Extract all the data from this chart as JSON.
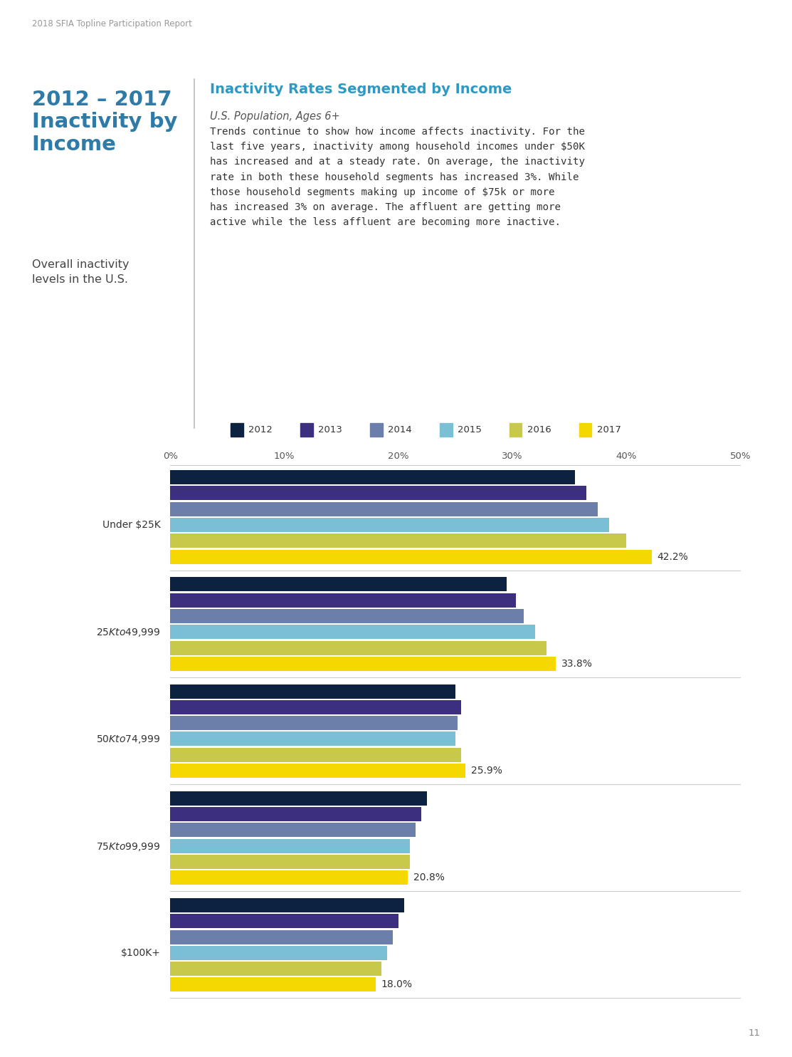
{
  "page_label": "2018 SFIA Topline Participation Report",
  "page_number": "11",
  "left_title_line1": "2012 – 2017",
  "left_title_line2": "Inactivity by",
  "left_title_line3": "Income",
  "left_subtitle": "Overall inactivity\nlevels in the U.S.",
  "right_chart_title": "Inactivity Rates Segmented by Income",
  "right_subtitle": "U.S. Population, Ages 6+",
  "body_text": "Trends continue to show how income affects inactivity. For the\nlast five years, inactivity among household incomes under $50K\nhas increased and at a steady rate. On average, the inactivity\nrate in both these household segments has increased 3%. While\nthose household segments making up income of $75k or more\nhas increased 3% on average. The affluent are getting more\nactive while the less affluent are becoming more inactive.",
  "categories": [
    "Under $25K",
    "$25K to $49,999",
    "$50K to $74,999",
    "$75K to $99,999",
    "$100K+"
  ],
  "years": [
    "2012",
    "2013",
    "2014",
    "2015",
    "2016",
    "2017"
  ],
  "colors": [
    "#0d2240",
    "#3d2f7f",
    "#6b7faa",
    "#7bbfd4",
    "#c8c84a",
    "#f5d800"
  ],
  "data": {
    "Under $25K": [
      35.5,
      36.5,
      37.5,
      38.5,
      40.0,
      42.2
    ],
    "$25K to $49,999": [
      29.5,
      30.3,
      31.0,
      32.0,
      33.0,
      33.8
    ],
    "$50K to $74,999": [
      25.0,
      25.5,
      25.2,
      25.0,
      25.5,
      25.9
    ],
    "$75K to $99,999": [
      22.5,
      22.0,
      21.5,
      21.0,
      21.0,
      20.8
    ],
    "$100K+": [
      20.5,
      20.0,
      19.5,
      19.0,
      18.5,
      18.0
    ]
  },
  "last_year_labels": {
    "Under $25K": "42.2%",
    "$25K to $49,999": "33.8%",
    "$50K to $74,999": "25.9%",
    "$75K to $99,999": "20.8%",
    "$100K+": "18.0%"
  },
  "xlim": [
    0,
    50
  ],
  "xticks": [
    0,
    10,
    20,
    30,
    40,
    50
  ],
  "xtick_labels": [
    "0%",
    "10%",
    "20%",
    "30%",
    "40%",
    "50%"
  ],
  "background_color": "#ffffff",
  "divider_color": "#cccccc",
  "left_title_color": "#2e7ba8",
  "right_title_color": "#2e9ac4",
  "body_text_color": "#333333",
  "page_label_color": "#999999",
  "left_subtitle_color": "#444444",
  "right_subtitle_color": "#555555",
  "separator_line_color": "#bbbbbb",
  "grid_line_color": "#cccccc"
}
